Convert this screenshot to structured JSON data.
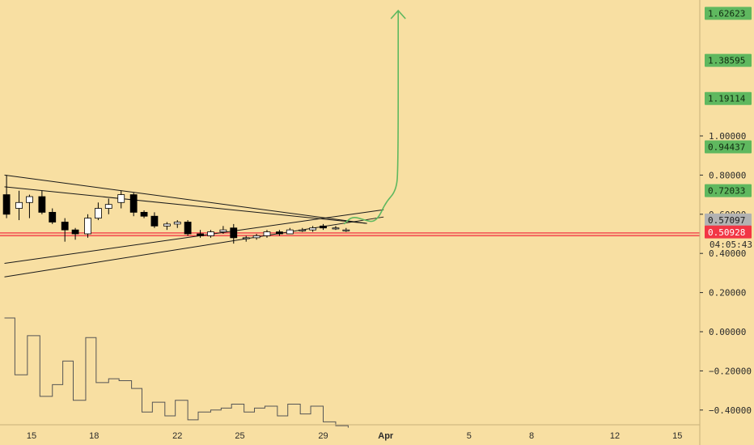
{
  "chart_data": {
    "type": "candlestick",
    "title": "",
    "price_axis": {
      "ticks": [
        "1.00000",
        "0.80000",
        "0.60000",
        "0.40000",
        "0.20000",
        "0.00000",
        "−0.20000",
        "−0.40000"
      ],
      "tick_values": [
        1.0,
        0.8,
        0.6,
        0.4,
        0.2,
        0.0,
        -0.2,
        -0.4
      ],
      "ylim": [
        -0.42,
        1.65
      ],
      "target_labels": [
        {
          "label": "1.62623",
          "value": 1.62623,
          "color": "#5fb85f"
        },
        {
          "label": "1.38595",
          "value": 1.38595,
          "color": "#5fb85f"
        },
        {
          "label": "1.19114",
          "value": 1.19114,
          "color": "#5fb85f"
        },
        {
          "label": "0.94437",
          "value": 0.94437,
          "color": "#5fb85f"
        },
        {
          "label": "0.72033",
          "value": 0.72033,
          "color": "#5fb85f"
        }
      ],
      "last_value_label": {
        "label": "0.57097",
        "value": 0.57097,
        "color": "#b2b2b2"
      },
      "current_price_label": {
        "label": "0.50928",
        "value": 0.50928,
        "color": "#f23645"
      },
      "countdown_label": "04:05:43"
    },
    "time_axis": {
      "labels": [
        "15",
        "18",
        "22",
        "25",
        "29",
        "Apr",
        "5",
        "8",
        "12",
        "15"
      ],
      "day_index": [
        0,
        3,
        7,
        10,
        14,
        17,
        21,
        24,
        28,
        31
      ],
      "month_labels": [
        "Apr"
      ]
    },
    "horizontal_lines": [
      {
        "name": "support-level",
        "value": 0.505,
        "color": "#f23645"
      },
      {
        "name": "support-level-lower",
        "value": 0.49,
        "color": "#f23645"
      }
    ],
    "candles": [
      {
        "day": -1.2,
        "o": 0.7,
        "h": 0.8,
        "l": 0.58,
        "c": 0.6
      },
      {
        "day": -0.6,
        "o": 0.63,
        "h": 0.72,
        "l": 0.57,
        "c": 0.66
      },
      {
        "day": -0.1,
        "o": 0.66,
        "h": 0.7,
        "l": 0.58,
        "c": 0.69
      },
      {
        "day": 0.5,
        "o": 0.69,
        "h": 0.72,
        "l": 0.6,
        "c": 0.61
      },
      {
        "day": 1.0,
        "o": 0.61,
        "h": 0.63,
        "l": 0.55,
        "c": 0.56
      },
      {
        "day": 1.6,
        "o": 0.56,
        "h": 0.58,
        "l": 0.46,
        "c": 0.52
      },
      {
        "day": 2.1,
        "o": 0.52,
        "h": 0.53,
        "l": 0.47,
        "c": 0.5
      },
      {
        "day": 2.7,
        "o": 0.5,
        "h": 0.6,
        "l": 0.48,
        "c": 0.58
      },
      {
        "day": 3.2,
        "o": 0.58,
        "h": 0.66,
        "l": 0.57,
        "c": 0.63
      },
      {
        "day": 3.7,
        "o": 0.63,
        "h": 0.68,
        "l": 0.6,
        "c": 0.65
      },
      {
        "day": 4.3,
        "o": 0.66,
        "h": 0.72,
        "l": 0.63,
        "c": 0.7
      },
      {
        "day": 4.9,
        "o": 0.7,
        "h": 0.71,
        "l": 0.59,
        "c": 0.61
      },
      {
        "day": 5.4,
        "o": 0.61,
        "h": 0.62,
        "l": 0.58,
        "c": 0.59
      },
      {
        "day": 5.9,
        "o": 0.59,
        "h": 0.61,
        "l": 0.53,
        "c": 0.54
      },
      {
        "day": 6.5,
        "o": 0.54,
        "h": 0.56,
        "l": 0.52,
        "c": 0.55
      },
      {
        "day": 7.0,
        "o": 0.55,
        "h": 0.57,
        "l": 0.53,
        "c": 0.56
      },
      {
        "day": 7.5,
        "o": 0.56,
        "h": 0.57,
        "l": 0.49,
        "c": 0.5
      },
      {
        "day": 8.1,
        "o": 0.5,
        "h": 0.52,
        "l": 0.48,
        "c": 0.49
      },
      {
        "day": 8.6,
        "o": 0.49,
        "h": 0.52,
        "l": 0.48,
        "c": 0.51
      },
      {
        "day": 9.2,
        "o": 0.51,
        "h": 0.54,
        "l": 0.5,
        "c": 0.52
      },
      {
        "day": 9.7,
        "o": 0.53,
        "h": 0.55,
        "l": 0.45,
        "c": 0.48
      },
      {
        "day": 10.3,
        "o": 0.48,
        "h": 0.49,
        "l": 0.46,
        "c": 0.48
      },
      {
        "day": 10.8,
        "o": 0.48,
        "h": 0.5,
        "l": 0.47,
        "c": 0.49
      },
      {
        "day": 11.3,
        "o": 0.49,
        "h": 0.52,
        "l": 0.48,
        "c": 0.51
      },
      {
        "day": 11.9,
        "o": 0.51,
        "h": 0.52,
        "l": 0.49,
        "c": 0.5
      },
      {
        "day": 12.4,
        "o": 0.5,
        "h": 0.53,
        "l": 0.5,
        "c": 0.52
      },
      {
        "day": 13.0,
        "o": 0.52,
        "h": 0.53,
        "l": 0.51,
        "c": 0.52
      },
      {
        "day": 13.5,
        "o": 0.52,
        "h": 0.54,
        "l": 0.51,
        "c": 0.53
      },
      {
        "day": 14.0,
        "o": 0.54,
        "h": 0.55,
        "l": 0.52,
        "c": 0.53
      },
      {
        "day": 14.6,
        "o": 0.53,
        "h": 0.54,
        "l": 0.52,
        "c": 0.53
      },
      {
        "day": 15.1,
        "o": 0.52,
        "h": 0.53,
        "l": 0.51,
        "c": 0.52
      }
    ],
    "trendlines": [
      {
        "name": "upper-descending-line",
        "from": {
          "day": -1.3,
          "value": 0.8
        },
        "to": {
          "day": 16.1,
          "value": 0.553
        }
      },
      {
        "name": "second-descending-line",
        "from": {
          "day": -1.3,
          "value": 0.74
        },
        "to": {
          "day": 16.1,
          "value": 0.553
        }
      },
      {
        "name": "upper-ascending-line",
        "from": {
          "day": -1.3,
          "value": 0.349
        },
        "to": {
          "day": 16.9,
          "value": 0.623
        }
      },
      {
        "name": "lower-ascending-line",
        "from": {
          "day": -1.3,
          "value": 0.28
        },
        "to": {
          "day": 16.9,
          "value": 0.586
        }
      }
    ],
    "projection": {
      "color": "#5fb85f",
      "points": [
        {
          "day": 15.0,
          "value": 0.55
        },
        {
          "day": 15.4,
          "value": 0.59
        },
        {
          "day": 16.0,
          "value": 0.57
        },
        {
          "day": 16.4,
          "value": 0.56
        },
        {
          "day": 16.7,
          "value": 0.59
        },
        {
          "day": 17.0,
          "value": 0.66
        },
        {
          "day": 17.5,
          "value": 0.72
        },
        {
          "day": 17.6,
          "value": 0.83
        },
        {
          "day": 17.6,
          "value": 1.64
        }
      ]
    },
    "step_indicator": {
      "color": "#555555",
      "points": [
        {
          "day": -1.3,
          "value": 0.07
        },
        {
          "day": -0.8,
          "value": -0.22
        },
        {
          "day": -0.2,
          "value": -0.02
        },
        {
          "day": 0.4,
          "value": -0.33
        },
        {
          "day": 1.0,
          "value": -0.27
        },
        {
          "day": 1.5,
          "value": -0.15
        },
        {
          "day": 2.0,
          "value": -0.35
        },
        {
          "day": 2.6,
          "value": -0.03
        },
        {
          "day": 3.1,
          "value": -0.26
        },
        {
          "day": 3.7,
          "value": -0.24
        },
        {
          "day": 4.2,
          "value": -0.25
        },
        {
          "day": 4.8,
          "value": -0.29
        },
        {
          "day": 5.3,
          "value": -0.41
        },
        {
          "day": 5.8,
          "value": -0.36
        },
        {
          "day": 6.4,
          "value": -0.43
        },
        {
          "day": 6.9,
          "value": -0.35
        },
        {
          "day": 7.5,
          "value": -0.45
        },
        {
          "day": 8.0,
          "value": -0.41
        },
        {
          "day": 8.6,
          "value": -0.4
        },
        {
          "day": 9.1,
          "value": -0.39
        },
        {
          "day": 9.6,
          "value": -0.37
        },
        {
          "day": 10.2,
          "value": -0.41
        },
        {
          "day": 10.7,
          "value": -0.39
        },
        {
          "day": 11.2,
          "value": -0.38
        },
        {
          "day": 11.8,
          "value": -0.43
        },
        {
          "day": 12.3,
          "value": -0.37
        },
        {
          "day": 12.9,
          "value": -0.42
        },
        {
          "day": 13.4,
          "value": -0.38
        },
        {
          "day": 14.0,
          "value": -0.46
        },
        {
          "day": 14.6,
          "value": -0.48
        },
        {
          "day": 15.2,
          "value": -0.49
        }
      ]
    },
    "colors": {
      "background": "#f8dfa2",
      "up_candle": "#ffffff",
      "down_candle": "#000000",
      "line": "#1a1a1a",
      "axis_text": "#2b2b2b"
    }
  }
}
